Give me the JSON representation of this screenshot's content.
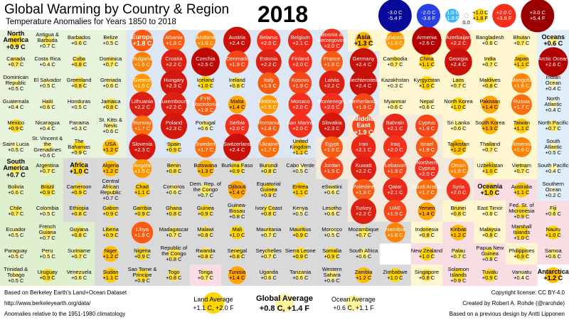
{
  "title": "Global Warming by Country & Region",
  "subtitle": "Temperature Anomalies for Years 1850 to 2018",
  "year": "2018",
  "legend": [
    {
      "value": -3,
      "c": "-3.0 C",
      "f": "-5.4 F",
      "color": "#0a0a9a"
    },
    {
      "value": -2,
      "c": "-2.0 C",
      "f": "-3.6 F",
      "color": "#2a3fe0"
    },
    {
      "value": -1,
      "c": "-1.0 C",
      "f": "-1.8 F",
      "color": "#3fb8f0"
    },
    {
      "value": 0,
      "c": "0.0",
      "color": "#ffffff"
    },
    {
      "value": 1,
      "c": "+1.0 C",
      "f": "+1.8 F",
      "color": "#ffd600"
    },
    {
      "value": 2,
      "c": "+2.0 C",
      "f": "+3.6 F",
      "color": "#f4301c"
    },
    {
      "value": 3,
      "c": "+3.0 C",
      "f": "+5.4 F",
      "color": "#9a0000"
    }
  ],
  "region_colors": [
    "#e8f3dc",
    "#dff0cf",
    "#d9d9d9",
    "#dce7f3",
    "#f2e8dc",
    "#fdf6cf",
    "#f8dde3",
    "#dfeef8",
    "#ffffff"
  ],
  "columns": [
    [
      [
        "North America",
        0.9,
        "+0.9 C",
        0,
        1
      ],
      [
        "Canada",
        0.7,
        "+0.7 C",
        0
      ],
      [
        "Dominican Republic",
        0.5,
        "+0.5 C",
        0
      ],
      [
        "Guatemala",
        0.4,
        "+0.4 C",
        0
      ],
      [
        "Mexico",
        0.9,
        "+0.9 C",
        0
      ],
      [
        "Saint Lucia",
        0.5,
        "+0.5 C",
        0
      ],
      [
        "South America",
        0.7,
        "+0.7 C",
        1,
        1
      ],
      [
        "Bolivia",
        0.6,
        "+0.6 C",
        1
      ],
      [
        "Chile",
        0.7,
        "+0.7 C",
        1
      ],
      [
        "Ecuador",
        0.5,
        "+0.5 C",
        1
      ],
      [
        "Paraguay",
        0.5,
        "+0.5 C",
        1
      ],
      [
        "Trinidad & Tobago",
        0.5,
        "+0.5 C",
        1
      ]
    ],
    [
      [
        "Antigua & Barbuda",
        0.7,
        "+0.7 C",
        0
      ],
      [
        "Costa Rica",
        0.4,
        "+0.4 C",
        0
      ],
      [
        "El Salvador",
        0.5,
        "+0.5 C",
        0
      ],
      [
        "Haiti",
        0.6,
        "+0.6 C",
        0
      ],
      [
        "Nicaragua",
        0.4,
        "+0.4 C",
        0
      ],
      [
        "St. Vincent & the Grenadines",
        0.6,
        "+0.6 C",
        0
      ],
      [
        "Argentina",
        0.7,
        "+0.7 C",
        1
      ],
      [
        "Brazil",
        0.9,
        "+0.9 C",
        1
      ],
      [
        "Colombia",
        0.5,
        "+0.5 C",
        1
      ],
      [
        "French Guiana",
        0.7,
        "+0.7 C",
        1
      ],
      [
        "Peru",
        0.5,
        "+0.5 C",
        1
      ],
      [
        "Uruguay",
        0.9,
        "+0.9 C",
        1
      ]
    ],
    [
      [
        "Barbados",
        0.6,
        "+0.6 C",
        0
      ],
      [
        "Cuba",
        0.8,
        "+0.8 C",
        0
      ],
      [
        "Greenland",
        0.8,
        "+0.8 C",
        0
      ],
      [
        "Honduras",
        0.5,
        "+0.5 C",
        0
      ],
      [
        "Panama",
        0.3,
        "+0.3 C",
        0
      ],
      [
        "The Bahamas",
        0.9,
        "+0.9 C",
        0
      ],
      [
        "Africa",
        1.0,
        "+1.0 C",
        2,
        1
      ],
      [
        "Cameroon",
        0.9,
        "+0.9 C",
        2
      ],
      [
        "Ethiopia",
        0.8,
        "+0.8 C",
        2
      ],
      [
        "Guyana",
        0.8,
        "+0.8 C",
        1
      ],
      [
        "Suriname",
        0.7,
        "+0.7 C",
        1
      ],
      [
        "Venezuela",
        0.6,
        "+0.6 C",
        1
      ]
    ],
    [
      [
        "Belize",
        0.5,
        "+0.5 C",
        0
      ],
      [
        "Dominica",
        0.7,
        "+0.7 C",
        0
      ],
      [
        "Grenada",
        0.6,
        "+0.6 C",
        0
      ],
      [
        "Jamaica",
        0.8,
        "+0.8 C",
        0
      ],
      [
        "St. Kitts & Nevis",
        0.6,
        "+0.6 C",
        0
      ],
      [
        "USA",
        1.2,
        "+1.2 C",
        0
      ],
      [
        "Algeria",
        1.2,
        "+1.2 C",
        2
      ],
      [
        "Central African Republic",
        0.7,
        "+0.7 C",
        2
      ],
      [
        "Gabon",
        0.9,
        "+0.9 C",
        2
      ],
      [
        "Liberia",
        0.9,
        "+0.9 C",
        2
      ],
      [
        "Niger",
        1.2,
        "+1.2 C",
        2
      ],
      [
        "Sudan",
        1.1,
        "+1.1 C",
        2
      ]
    ],
    [
      [
        "Europe",
        1.8,
        "+1.8 C",
        3,
        1
      ],
      [
        "Bulgaria",
        1.6,
        "+1.6 C",
        3
      ],
      [
        "Greece",
        1.5,
        "+1.5 C",
        3
      ],
      [
        "Lithuania",
        2.2,
        "+2.2 C",
        3
      ],
      [
        "Norway",
        1.7,
        "+1.7 C",
        3
      ],
      [
        "Slovenia",
        2.3,
        "+2.3 C",
        3
      ],
      [
        "Angola",
        1.5,
        "+1.5 C",
        2
      ],
      [
        "Chad",
        1.1,
        "+1.1 C",
        2
      ],
      [
        "Gambia",
        0.9,
        "+0.9 C",
        2
      ],
      [
        "Libya",
        1.8,
        "+1.8 C",
        2
      ],
      [
        "Nigeria",
        0.9,
        "+0.9 C",
        2
      ],
      [
        "Sao Tome & Principe",
        0.9,
        "+0.9 C",
        2
      ]
    ],
    [
      [
        "Albania",
        1.8,
        "+1.8 C",
        3
      ],
      [
        "Croatia",
        2.2,
        "+2.2 C",
        3
      ],
      [
        "Hungary",
        2.3,
        "+2.3 C",
        3
      ],
      [
        "Luxembourg",
        2.2,
        "+2.2 C",
        3
      ],
      [
        "Poland",
        2.3,
        "+2.3 C",
        3
      ],
      [
        "Spain",
        0.9,
        "+0.9 C",
        3
      ],
      [
        "Benin",
        0.8,
        "+0.8 C",
        2
      ],
      [
        "Comoros",
        0.6,
        "+0.6 C",
        2
      ],
      [
        "Ghana",
        0.8,
        "+0.8 C",
        2
      ],
      [
        "Madagascar",
        0.7,
        "+0.7 C",
        2
      ],
      [
        "Republic of the Congo",
        0.8,
        "+0.8 C",
        2
      ],
      [
        "Togo",
        0.8,
        "+0.8 C",
        2
      ]
    ],
    [
      [
        "Andorra",
        1.6,
        "+1.6 C",
        3
      ],
      [
        "Czechia",
        2.5,
        "+2.5 C",
        3
      ],
      [
        "Iceland",
        1.0,
        "+1.0 C",
        3
      ],
      [
        "FYR Macedonia",
        1.8,
        "+1.8 C",
        3
      ],
      [
        "Portugal",
        0.6,
        "+0.6 C",
        3
      ],
      [
        "Sweden",
        1.7,
        "+1.7 C",
        3
      ],
      [
        "Botswana",
        1.3,
        "+1.3 C",
        2
      ],
      [
        "Dem. Rep. of the Congo",
        0.7,
        "+0.7 C",
        2
      ],
      [
        "Guinea",
        0.9,
        "+0.9 C",
        2
      ],
      [
        "Malawi",
        0.8,
        "+0.8 C",
        2
      ],
      [
        "Rwanda",
        0.8,
        "+0.8 C",
        2
      ],
      [
        "Tonga",
        0.7,
        "+0.7 C",
        6
      ]
    ],
    [
      [
        "Austria",
        2.4,
        "+2.4 C",
        3
      ],
      [
        "Denmark",
        1.9,
        "+1.9 C",
        3
      ],
      [
        "Ireland",
        0.8,
        "+0.8 C",
        3
      ],
      [
        "Malta",
        1.4,
        "+1.4 C",
        3
      ],
      [
        "Serbia",
        2.0,
        "+2.0 C",
        3
      ],
      [
        "Switzerland",
        2.4,
        "+2.4 C",
        3
      ],
      [
        "Burkina Faso",
        0.9,
        "+0.9 C",
        2
      ],
      [
        "Djibouti",
        1.4,
        "+1.4 C",
        2
      ],
      [
        "Guinea-Bissau",
        0.8,
        "+0.8 C",
        2
      ],
      [
        "Mali",
        1.0,
        "+1.0 C",
        2
      ],
      [
        "Senegal",
        0.8,
        "+0.8 C",
        2
      ],
      [
        "Tunisia",
        1.4,
        "+1.4 C",
        2
      ]
    ],
    [
      [
        "Belarus",
        2.0,
        "+2.0 C",
        3
      ],
      [
        "Estonia",
        2.2,
        "+2.2 C",
        3
      ],
      [
        "Italy",
        1.8,
        "+1.8 C",
        3
      ],
      [
        "Moldova",
        1.5,
        "+1.5 C",
        3
      ],
      [
        "Romania",
        1.8,
        "+1.8 C",
        3
      ],
      [
        "Ukraine",
        1.7,
        "+1.7 C",
        3
      ],
      [
        "Burundi",
        0.8,
        "+0.8 C",
        2
      ],
      [
        "Equatorial Guinea",
        0.9,
        "+0.9 C",
        2
      ],
      [
        "Ivory Coast",
        0.8,
        "+0.8 C",
        2
      ],
      [
        "Mauritania",
        0.7,
        "+0.7 C",
        2
      ],
      [
        "Seychelles",
        0.7,
        "+0.7 C",
        2
      ],
      [
        "Uganda",
        0.6,
        "+0.6 C",
        2
      ]
    ],
    [
      [
        "Belgium",
        2.1,
        "+2.1 C",
        3
      ],
      [
        "Finland",
        2.0,
        "+2.0 C",
        3
      ],
      [
        "Kosovo",
        1.9,
        "+1.9 C",
        3
      ],
      [
        "Monaco",
        2.0,
        "+2.0 C",
        3
      ],
      [
        "San Marino",
        2.0,
        "+2.0 C",
        3
      ],
      [
        "United Kingdom",
        1.1,
        "+1.1 C",
        3
      ],
      [
        "Cabo Verde",
        0.5,
        "+0.5 C",
        2
      ],
      [
        "Eritrea",
        1.1,
        "+1.1 C",
        2
      ],
      [
        "Kenya",
        0.5,
        "+0.5 C",
        2
      ],
      [
        "Mauritius",
        0.9,
        "+0.9 C",
        2
      ],
      [
        "Sierra Leone",
        0.9,
        "+0.9 C",
        2
      ],
      [
        "Tanzania",
        0.6,
        "+0.6 C",
        2
      ]
    ],
    [
      [
        "Bosnia & Herzegovina",
        2.0,
        "+2.0 C",
        3
      ],
      [
        "France",
        1.8,
        "+1.8 C",
        3
      ],
      [
        "Latvia",
        2.2,
        "+2.2 C",
        3
      ],
      [
        "Montenegro",
        2.0,
        "+2.0 C",
        3
      ],
      [
        "Slovakia",
        2.3,
        "+2.3 C",
        3
      ],
      [
        "Egypt",
        1.8,
        "+1.8 C",
        4
      ],
      [
        "Jordan",
        1.9,
        "+1.9 C",
        4
      ],
      [
        "eSwatini",
        0.6,
        "+0.6 C",
        2
      ],
      [
        "Lesotho",
        0.6,
        "+0.6 C",
        2
      ],
      [
        "Morocco",
        0.5,
        "+0.5 C",
        2
      ],
      [
        "Somalia",
        0.9,
        "+0.9 C",
        2
      ],
      [
        "Western Sahara",
        0.6,
        "+0.6 C",
        2
      ]
    ],
    [
      [
        "Asia",
        1.3,
        "+1.3 C",
        5,
        1
      ],
      [
        "Germany",
        2.4,
        "+2.4 C",
        3
      ],
      [
        "Liechtenstein",
        2.4,
        "+2.4 C",
        3
      ],
      [
        "Netherlands",
        1.9,
        "+1.9 C",
        3
      ],
      [
        "Middle East",
        1.9,
        "+1.9 C",
        4,
        1
      ],
      [
        "Iran",
        2.1,
        "+2.1 C",
        4
      ],
      [
        "Kuwait",
        2.2,
        "+2.2 C",
        4
      ],
      [
        "Palestine",
        1.8,
        "+1.8 C",
        4
      ],
      [
        "Turkey",
        2.2,
        "+2.2 C",
        4
      ],
      [
        "Mozambique",
        0.7,
        "+0.7 C",
        2
      ],
      [
        "South Africa",
        0.6,
        "+0.6 C",
        2
      ],
      [
        "Zambia",
        1.2,
        "+1.2 C",
        2
      ]
    ],
    [
      [
        "Afghanistan",
        1.5,
        "+1.5 C",
        5
      ],
      [
        "Cambodia",
        0.7,
        "+0.7 C",
        5
      ],
      [
        "Kazakhstan",
        0.3,
        "+0.3 C",
        5
      ],
      [
        "Myanmar",
        0.6,
        "+0.6 C",
        5
      ],
      [
        "Bahrain",
        2.1,
        "+2.1 C",
        4
      ],
      [
        "Iraq",
        2.0,
        "+2.0 C",
        4
      ],
      [
        "Lebanon",
        1.9,
        "+1.9 C",
        4
      ],
      [
        "Qatar",
        2.1,
        "+2.1 C",
        4
      ],
      [
        "UAE",
        1.9,
        "+1.9 C",
        4
      ],
      [
        "Namibia",
        1.6,
        "+1.6 C",
        2
      ],
      null,
      [
        "Zimbabwe",
        1.0,
        "+1.0 C",
        2
      ]
    ],
    [
      [
        "Armenia",
        2.6,
        "+2.6 C",
        5
      ],
      [
        "China",
        1.1,
        "+1.1 C",
        5
      ],
      [
        "Kyrgyzstan",
        1.0,
        "+1.0 C",
        5
      ],
      [
        "Nepal",
        0.6,
        "+0.6 C",
        5
      ],
      [
        "Cyprus",
        1.9,
        "+1.9 C",
        4
      ],
      [
        "Israel",
        1.8,
        "+1.8 C",
        4
      ],
      [
        "Northern Cyprus",
        2.0,
        "+2.0 C",
        4
      ],
      [
        "Saudi Arabia",
        1.7,
        "+1.7 C",
        4
      ],
      [
        "Yemen",
        1.4,
        "+1.4 C",
        4
      ],
      [
        "Indonesia",
        0.8,
        "+0.8 C",
        5
      ],
      [
        "New Zealand",
        1.0,
        "+1.0 C",
        6
      ],
      [
        "Singapore",
        0.8,
        "+0.8 C",
        5
      ]
    ],
    [
      [
        "Azerbaijan",
        2.2,
        "+2.2 C",
        5
      ],
      [
        "Georgia",
        2.4,
        "+2.4 C",
        5
      ],
      [
        "Laos",
        0.7,
        "+0.7 C",
        5
      ],
      [
        "North Korea",
        1.0,
        "+1.0 C",
        5
      ],
      [
        "Sri Lanka",
        0.6,
        "+0.6 C",
        5
      ],
      [
        "Tajikistan",
        1.2,
        "+1.2 C",
        5
      ],
      [
        "Oman",
        1.6,
        "+1.6 C",
        4
      ],
      [
        "Syria",
        2.0,
        "+2.0 C",
        4
      ],
      [
        "Brunei",
        0.8,
        "+0.8 C",
        5
      ],
      [
        "Kiribati",
        1.2,
        "+1.2 C",
        6
      ],
      [
        "Palau",
        0.7,
        "+0.7 C",
        6
      ],
      [
        "Solomon Islands",
        0.9,
        "+0.9 C",
        6
      ]
    ],
    [
      [
        "Bangladesh",
        0.6,
        "+0.6 C",
        5
      ],
      [
        "India",
        0.7,
        "+0.7 C",
        5
      ],
      [
        "Maldives",
        0.8,
        "+0.8 C",
        5
      ],
      [
        "Pakistan",
        1.4,
        "+1.4 C",
        5
      ],
      [
        "South Korea",
        1.3,
        "+1.3 C",
        5
      ],
      [
        "Thailand",
        0.7,
        "+0.7 C",
        5
      ],
      [
        "Uzbekistan",
        1.0,
        "+1.0 C",
        5
      ],
      [
        "Oceania",
        1.0,
        "+1.0 C",
        6,
        1
      ],
      [
        "East Timor",
        0.6,
        "+0.6 C",
        5
      ],
      [
        "Malaysia",
        0.8,
        "+0.8 C",
        5
      ],
      [
        "Papua New Guinea",
        0.8,
        "+0.8 C",
        6
      ],
      [
        "Tuvalu",
        0.9,
        "+0.9 C",
        6
      ]
    ],
    [
      [
        "Bhutan",
        0.7,
        "+0.7 C",
        5
      ],
      [
        "Japan",
        1.1,
        "+1.1 C",
        5
      ],
      [
        "Mongolia",
        1.6,
        "+1.6 C",
        5
      ],
      [
        "Russia",
        1.7,
        "+1.7 C",
        5
      ],
      [
        "Taiwan",
        1.1,
        "+1.1 C",
        5
      ],
      [
        "Turkmenistan",
        1.6,
        "+1.6 C",
        5
      ],
      [
        "Vietnam",
        0.7,
        "+0.7 C",
        5
      ],
      [
        "Australia",
        1.1,
        "+1.1 C",
        6
      ],
      [
        "Fed. St. of Micronesia",
        0.9,
        "+0.9 C",
        6
      ],
      [
        "Marshall Islands",
        1.0,
        "+1.0 C",
        6
      ],
      [
        "Philippines",
        0.9,
        "+0.9 C",
        5
      ],
      [
        "Vanuatu",
        0.4,
        "+0.4 C",
        6
      ]
    ],
    [
      [
        "Oceans",
        0.6,
        "+0.6 C",
        7,
        1
      ],
      [
        "Arctic Ocean",
        2.6,
        "+2.6 C",
        7
      ],
      [
        "Indian Ocean",
        0.4,
        "+0.4 C",
        7
      ],
      [
        "North Atlantic",
        0.4,
        "+0.4 C",
        7
      ],
      [
        "North Pacific",
        0.7,
        "+0.7 C",
        7
      ],
      [
        "South Atlantic",
        0.5,
        "+0.5 C",
        7
      ],
      [
        "South Pacific",
        0.4,
        "+0.4 C",
        7
      ],
      [
        "Southern Ocean",
        0.2,
        "+0.2 C",
        7
      ],
      [
        "Fiji",
        0.6,
        "+0.6 C",
        6
      ],
      [
        "Nauru",
        1.0,
        "+1.0 C",
        6
      ],
      [
        "Samoa",
        0.6,
        "+0.6 C",
        6
      ],
      [
        "Antarctica",
        1.2,
        "+1.2 C",
        8,
        1
      ]
    ]
  ],
  "footer": {
    "source": "Based on Berkeley Earth's Land+Ocean Dataset",
    "url": "http://www.berkeleyearth.org/data/",
    "baseline": "Anomalies relative to the 1951-1980 climatology",
    "land_title": "Land Average",
    "land_value": "+1.1 C, +2.0 F",
    "global_title": "Global Average",
    "global_value": "+0.8 C, +1.4 F",
    "ocean_title": "Ocean Average",
    "ocean_value": "+0.6 C, +1.1 F",
    "license": "Copyright license: CC BY-4.0",
    "creator": "Created by Robert A. Rohde (@rarohde)",
    "design": "Based on a previous design by Antti Lipponen"
  }
}
